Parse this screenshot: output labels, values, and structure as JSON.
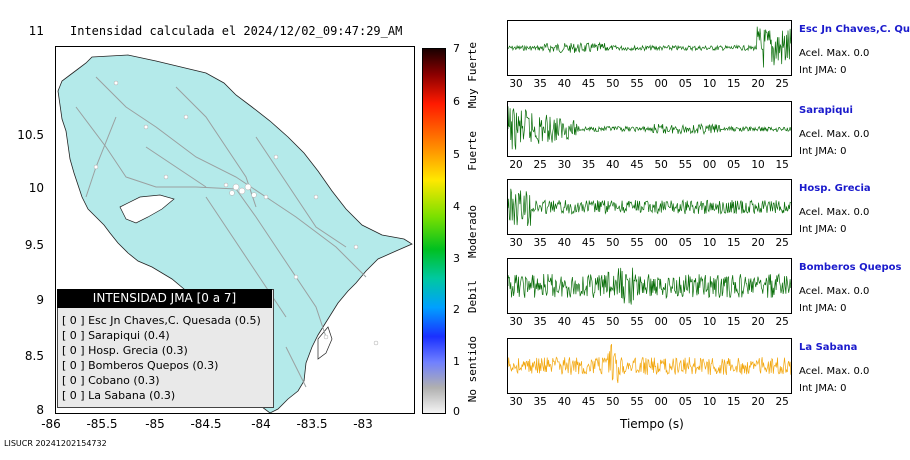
{
  "map": {
    "title": "Intensidad calculada el 2024/12/02_09:47:29_AM",
    "y_ticks": [
      "11",
      "10.5",
      "10",
      "9.5",
      "9",
      "8.5",
      "8"
    ],
    "x_ticks": [
      "-86",
      "-85.5",
      "-85",
      "-84.5",
      "-84",
      "-83.5",
      "-83"
    ],
    "land_color": "#b4eaea",
    "legend": {
      "header": "INTENSIDAD JMA [0 a 7]",
      "items": [
        "[ 0 ]  Esc Jn Chaves,C. Quesada (0.5)",
        "[ 0 ]  Sarapiqui (0.4)",
        "[ 0 ]  Hosp. Grecia (0.3)",
        "[ 0 ]  Bomberos Quepos (0.3)",
        "[ 0 ]  Cobano (0.3)",
        "[ 0 ]  La Sabana (0.3)"
      ]
    }
  },
  "colorbar": {
    "ticks": [
      "7",
      "6",
      "5",
      "4",
      "3",
      "2",
      "1",
      "0"
    ],
    "labels": [
      "Muy Fuerte",
      "Fuerte",
      "Moderado",
      "Debil",
      "No sentido"
    ]
  },
  "traces": [
    {
      "name": "Esc Jn Chaves,C. Ques",
      "acel": "Acel. Max. 0.0",
      "int": "Int JMA: 0",
      "color": "#0a6e0a",
      "ticks": [
        "30",
        "35",
        "40",
        "45",
        "50",
        "55",
        "00",
        "05",
        "10",
        "15",
        "20",
        "25"
      ]
    },
    {
      "name": "Sarapiqui",
      "acel": "Acel. Max. 0.0",
      "int": "Int JMA: 0",
      "color": "#0a6e0a",
      "ticks": [
        "20",
        "25",
        "30",
        "35",
        "40",
        "45",
        "50",
        "55",
        "00",
        "05",
        "10",
        "15"
      ]
    },
    {
      "name": "Hosp. Grecia",
      "acel": "Acel. Max. 0.0",
      "int": "Int JMA: 0",
      "color": "#0a6e0a",
      "ticks": [
        "30",
        "35",
        "40",
        "45",
        "50",
        "55",
        "00",
        "05",
        "10",
        "15",
        "20",
        "25"
      ]
    },
    {
      "name": "Bomberos Quepos",
      "acel": "Acel. Max. 0.0",
      "int": "Int JMA: 0",
      "color": "#0a6e0a",
      "ticks": [
        "30",
        "35",
        "40",
        "45",
        "50",
        "55",
        "00",
        "05",
        "10",
        "15",
        "20",
        "25"
      ]
    },
    {
      "name": "La Sabana",
      "acel": "Acel. Max. 0.0",
      "int": "Int JMA: 0",
      "color": "#f2a60c",
      "ticks": [
        "30",
        "35",
        "40",
        "45",
        "50",
        "55",
        "00",
        "05",
        "10",
        "15",
        "20",
        "25"
      ]
    }
  ],
  "x_axis_title": "Tiempo (s)",
  "footer_id": "LISUCR 20241202154732"
}
